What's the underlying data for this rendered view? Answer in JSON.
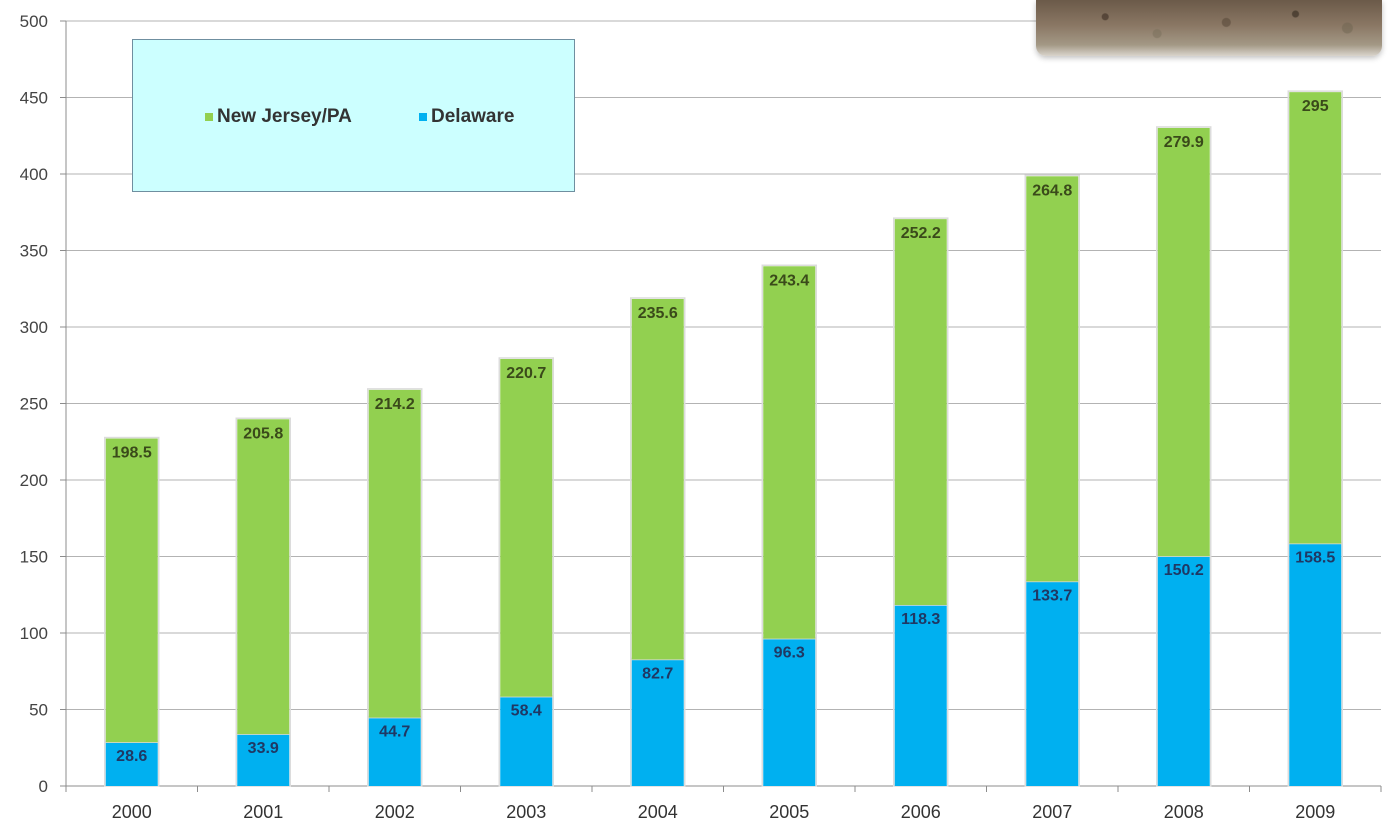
{
  "chart_data": {
    "type": "bar",
    "stacked": true,
    "categories": [
      "2000",
      "2001",
      "2002",
      "2003",
      "2004",
      "2005",
      "2006",
      "2007",
      "2008",
      "2009"
    ],
    "series": [
      {
        "name": "Delaware",
        "color": "#00b0f0",
        "label_color": "#1f3864",
        "values": [
          28.6,
          33.9,
          44.7,
          58.4,
          82.7,
          96.3,
          118.3,
          133.7,
          150.2,
          158.5
        ]
      },
      {
        "name": "New Jersey/PA",
        "color": "#92d050",
        "label_color": "#3a4a1a",
        "values": [
          198.5,
          205.8,
          214.2,
          220.7,
          235.6,
          243.4,
          252.2,
          264.8,
          279.9,
          295
        ]
      }
    ],
    "ylim": [
      0,
      500
    ],
    "yticks": [
      0,
      50,
      100,
      150,
      200,
      250,
      300,
      350,
      400,
      450,
      500
    ],
    "grid": true,
    "legend_position": "top-left",
    "title": "",
    "xlabel": "",
    "ylabel": ""
  },
  "legend": {
    "items": [
      {
        "label": "New Jersey/PA",
        "color": "#92d050"
      },
      {
        "label": "Delaware",
        "color": "#00b0f0"
      }
    ]
  },
  "decorations": {
    "photo": "photo"
  }
}
